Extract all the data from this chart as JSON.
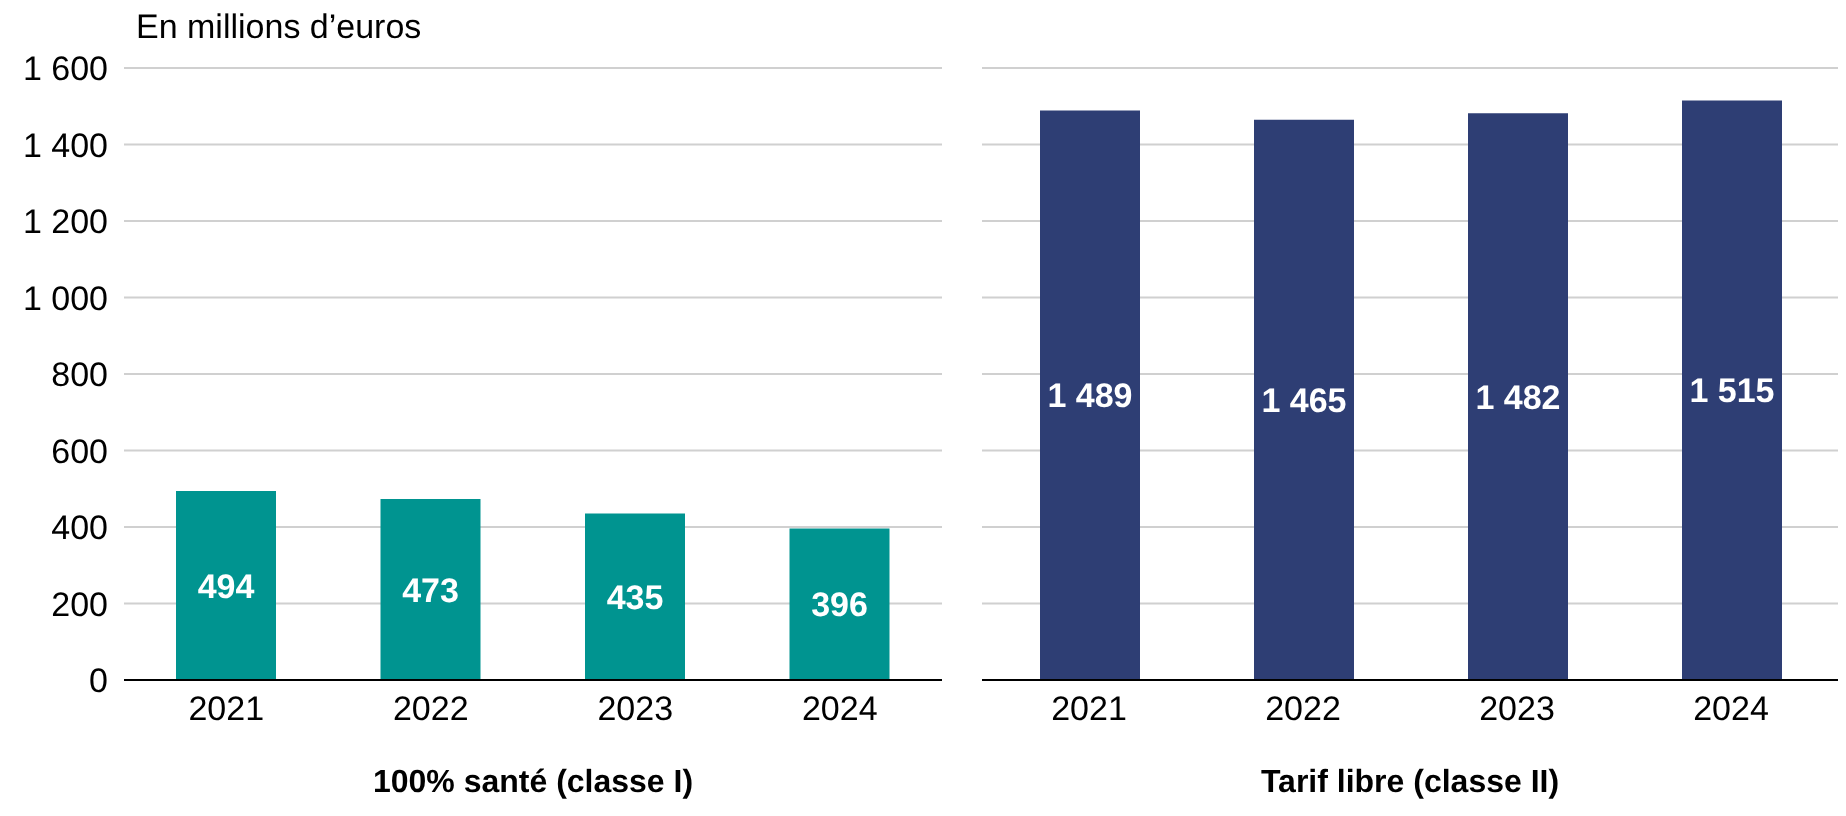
{
  "chart_data": [
    {
      "type": "bar",
      "ylabel": "En millions d’euros",
      "xlabel": "100% santé (classe I)",
      "categories": [
        "2021",
        "2022",
        "2023",
        "2024"
      ],
      "values": [
        494,
        473,
        435,
        396
      ],
      "color": "#009490",
      "ylim": [
        0,
        1600
      ],
      "yticks": [
        {
          "value": 0,
          "label": "0"
        },
        {
          "value": 200,
          "label": "200"
        },
        {
          "value": 400,
          "label": "400"
        },
        {
          "value": 600,
          "label": "600"
        },
        {
          "value": 800,
          "label": "800"
        },
        {
          "value": 1000,
          "label": "1 000"
        },
        {
          "value": 1200,
          "label": "1 200"
        },
        {
          "value": 1400,
          "label": "1 400"
        },
        {
          "value": 1600,
          "label": "1 600"
        }
      ],
      "grid": "y",
      "data_labels": true
    },
    {
      "type": "bar",
      "xlabel": "Tarif libre (classe II)",
      "categories": [
        "2021",
        "2022",
        "2023",
        "2024"
      ],
      "values": [
        1489,
        1465,
        1482,
        1515
      ],
      "color": "#2e3e74",
      "ylim": [
        0,
        1600
      ],
      "yticks": [
        0,
        200,
        400,
        600,
        800,
        1000,
        1200,
        1400,
        1600
      ],
      "grid": "y",
      "data_labels": true,
      "tick_labels": "x"
    }
  ]
}
